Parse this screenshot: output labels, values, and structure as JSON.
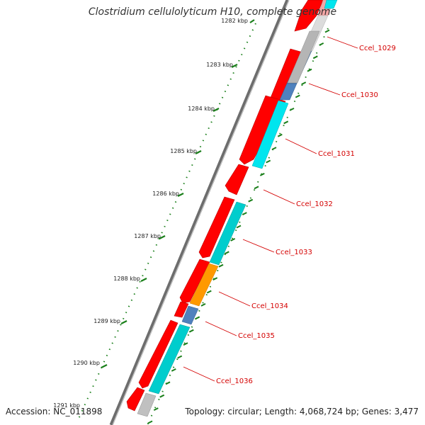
{
  "title": "Clostridium cellulolyticum H10, complete genome",
  "accession": "Accession: NC_011898",
  "summary": "Topology: circular; Length: 4,068,724 bp; Genes: 3,477",
  "ticks": [
    "1282 kbp",
    "1283 kbp",
    "1284 kbp",
    "1285 kbp",
    "1286 kbp",
    "1287 kbp",
    "1288 kbp",
    "1289 kbp",
    "1290 kbp",
    "1291 kbp"
  ],
  "genes": [
    "Ccel_1029",
    "Ccel_1030",
    "Ccel_1031",
    "Ccel_1032",
    "Ccel_1033",
    "Ccel_1034",
    "Ccel_1035",
    "Ccel_1036"
  ],
  "colors": {
    "backbone": "#8a8a8a",
    "cds_strand": "#ff0000",
    "cog_cyan": "#00e5ee",
    "cog_teal": "#00cdcd",
    "cog_steelblue": "#4f81bd",
    "cog_orange": "#ff9900",
    "cog_gray": "#c0c0c0",
    "tick": "#1a7f1a",
    "gene_label": "#d40000"
  }
}
